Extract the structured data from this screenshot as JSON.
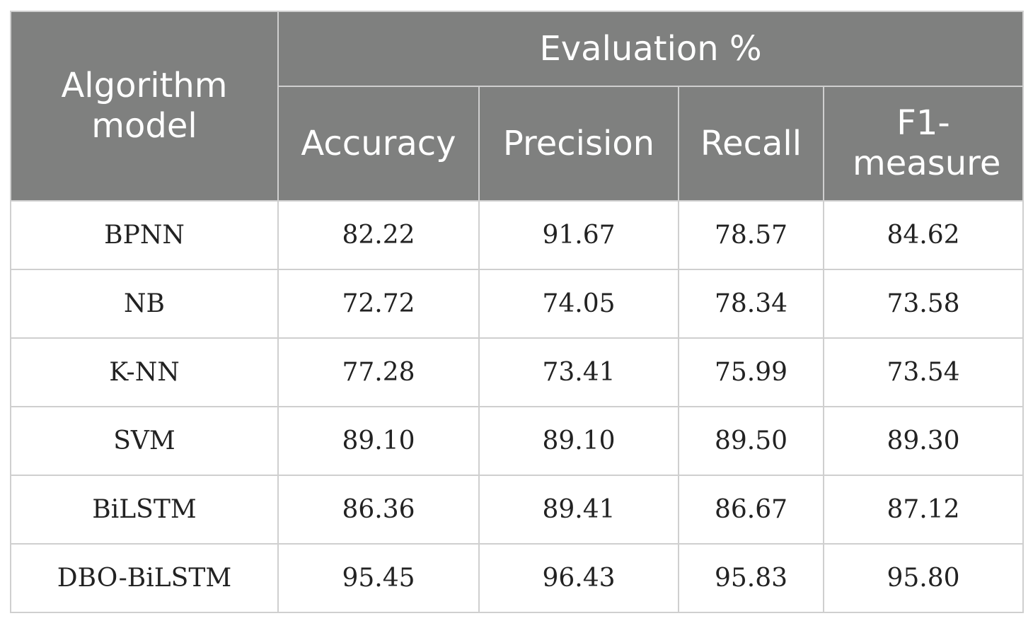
{
  "table": {
    "header": {
      "model_col": "Algorithm model",
      "group_label": "Evaluation %",
      "columns": [
        "Accuracy",
        "Precision",
        "Recall",
        "F1-measure"
      ]
    },
    "rows": [
      {
        "model": "BPNN",
        "values": [
          "82.22",
          "91.67",
          "78.57",
          "84.62"
        ]
      },
      {
        "model": "NB",
        "values": [
          "72.72",
          "74.05",
          "78.34",
          "73.58"
        ]
      },
      {
        "model": "K-NN",
        "values": [
          "77.28",
          "73.41",
          "75.99",
          "73.54"
        ]
      },
      {
        "model": "SVM",
        "values": [
          "89.10",
          "89.10",
          "89.50",
          "89.30"
        ]
      },
      {
        "model": "BiLSTM",
        "values": [
          "86.36",
          "89.41",
          "86.67",
          "87.12"
        ]
      },
      {
        "model": "DBO-BiLSTM",
        "values": [
          "95.45",
          "96.43",
          "95.83",
          "95.80"
        ]
      }
    ]
  }
}
